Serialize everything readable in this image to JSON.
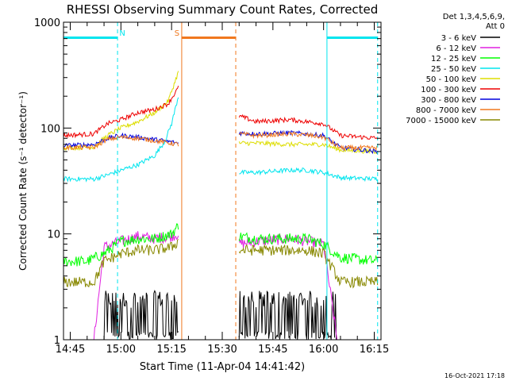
{
  "chart_data": {
    "type": "line",
    "title": "RHESSI Observing Summary Count Rates, Corrected",
    "xlabel": "Start Time (11-Apr-04 14:41:42)",
    "ylabel": "Corrected Count Rate (s⁻¹ detector⁻¹)",
    "yscale": "log",
    "ylim": [
      1,
      1000
    ],
    "y_ticks": [
      "1",
      "10",
      "100",
      "1000"
    ],
    "x_ticks": [
      "14:45",
      "15:00",
      "15:15",
      "15:30",
      "15:45",
      "16:00",
      "16:15"
    ],
    "xlim_min_from_1440": [
      3,
      97
    ],
    "legend_header": [
      "Det 1,3,4,5,6,9,",
      "Att 0"
    ],
    "legend_position": "right",
    "timestamp": "16-Oct-2021 17:18",
    "bars": [
      {
        "label": "N",
        "start": "14:42",
        "end": "14:59",
        "color": "#00e5ee"
      },
      {
        "label": "S",
        "start": "15:18",
        "end": "15:34",
        "color": "#f0781e"
      },
      {
        "label": "",
        "start": "16:01",
        "end": "16:16",
        "color": "#00e5ee"
      }
    ],
    "vlines": [
      {
        "time": "14:59",
        "color": "#00e5ee",
        "style": "dashed"
      },
      {
        "time": "15:18",
        "color": "#f0781e",
        "style": "solid"
      },
      {
        "time": "15:34",
        "color": "#f0781e",
        "style": "dashed"
      },
      {
        "time": "16:01",
        "color": "#00e5ee",
        "style": "solid"
      },
      {
        "time": "16:16",
        "color": "#00e5ee",
        "style": "dashed"
      }
    ],
    "series": [
      {
        "name": "3 - 6 keV",
        "color": "#000000",
        "seg1": [
          [
            "14:42",
            1.0
          ],
          [
            "14:55",
            1.0
          ],
          [
            "14:56",
            2.0
          ],
          [
            "15:00",
            2.2
          ],
          [
            "15:05",
            2.5
          ],
          [
            "15:10",
            2.2
          ],
          [
            "15:15",
            2.0
          ],
          [
            "15:17",
            1.5
          ]
        ],
        "seg2": [
          [
            "15:35",
            1.5
          ],
          [
            "15:40",
            2.0
          ],
          [
            "15:50",
            2.2
          ],
          [
            "15:55",
            2.1
          ],
          [
            "16:00",
            2.0
          ],
          [
            "16:04",
            1.0
          ],
          [
            "16:16",
            1.0
          ]
        ]
      },
      {
        "name": "6 - 12 keV",
        "color": "#e020e0",
        "seg1": [
          [
            "14:42",
            1.0
          ],
          [
            "14:52",
            1.0
          ],
          [
            "14:55",
            7.5
          ],
          [
            "15:00",
            8.5
          ],
          [
            "15:05",
            9.5
          ],
          [
            "15:10",
            9.0
          ],
          [
            "15:15",
            9.5
          ],
          [
            "15:17",
            10.0
          ]
        ],
        "seg2": [
          [
            "15:35",
            8.0
          ],
          [
            "15:40",
            8.5
          ],
          [
            "15:50",
            9.0
          ],
          [
            "15:55",
            8.5
          ],
          [
            "16:00",
            8.0
          ],
          [
            "16:04",
            1.0
          ],
          [
            "16:16",
            1.0
          ]
        ]
      },
      {
        "name": "12 - 25 keV",
        "color": "#00ff00",
        "seg1": [
          [
            "14:42",
            5.5
          ],
          [
            "14:50",
            5.5
          ],
          [
            "14:55",
            6.5
          ],
          [
            "15:00",
            8.5
          ],
          [
            "15:05",
            9.0
          ],
          [
            "15:10",
            9.0
          ],
          [
            "15:15",
            10.0
          ],
          [
            "15:17",
            12.0
          ]
        ],
        "seg2": [
          [
            "15:35",
            9.5
          ],
          [
            "15:40",
            9.0
          ],
          [
            "15:50",
            9.0
          ],
          [
            "15:55",
            9.0
          ],
          [
            "16:00",
            8.0
          ],
          [
            "16:05",
            6.0
          ],
          [
            "16:16",
            5.5
          ]
        ]
      },
      {
        "name": "25 - 50 keV",
        "color": "#00e5ee",
        "seg1": [
          [
            "14:42",
            33
          ],
          [
            "14:52",
            33
          ],
          [
            "14:56",
            36
          ],
          [
            "15:00",
            40
          ],
          [
            "15:05",
            45
          ],
          [
            "15:10",
            55
          ],
          [
            "15:13",
            75
          ],
          [
            "15:15",
            110
          ],
          [
            "15:17",
            200
          ]
        ],
        "seg2": [
          [
            "15:35",
            38
          ],
          [
            "15:40",
            38
          ],
          [
            "15:50",
            40
          ],
          [
            "15:55",
            40
          ],
          [
            "16:00",
            38
          ],
          [
            "16:05",
            34
          ],
          [
            "16:16",
            33
          ]
        ]
      },
      {
        "name": "50 - 100 keV",
        "color": "#dddd00",
        "seg1": [
          [
            "14:42",
            65
          ],
          [
            "14:52",
            66
          ],
          [
            "14:56",
            85
          ],
          [
            "15:00",
            100
          ],
          [
            "15:05",
            115
          ],
          [
            "15:10",
            140
          ],
          [
            "15:14",
            180
          ],
          [
            "15:17",
            340
          ]
        ],
        "seg2": [
          [
            "15:35",
            72
          ],
          [
            "15:40",
            72
          ],
          [
            "15:50",
            70
          ],
          [
            "15:55",
            70
          ],
          [
            "16:00",
            70
          ],
          [
            "16:05",
            62
          ],
          [
            "16:16",
            60
          ]
        ]
      },
      {
        "name": "100 - 300 keV",
        "color": "#ee0000",
        "seg1": [
          [
            "14:42",
            85
          ],
          [
            "14:52",
            88
          ],
          [
            "14:56",
            110
          ],
          [
            "15:00",
            120
          ],
          [
            "15:05",
            140
          ],
          [
            "15:10",
            150
          ],
          [
            "15:14",
            170
          ],
          [
            "15:17",
            240
          ]
        ],
        "seg2": [
          [
            "15:35",
            130
          ],
          [
            "15:40",
            115
          ],
          [
            "15:50",
            120
          ],
          [
            "15:55",
            115
          ],
          [
            "16:00",
            110
          ],
          [
            "16:05",
            85
          ],
          [
            "16:16",
            80
          ]
        ]
      },
      {
        "name": "300 - 800 keV",
        "color": "#0000dd",
        "seg1": [
          [
            "14:42",
            68
          ],
          [
            "14:52",
            70
          ],
          [
            "14:56",
            80
          ],
          [
            "15:00",
            85
          ],
          [
            "15:05",
            82
          ],
          [
            "15:10",
            78
          ],
          [
            "15:17",
            72
          ]
        ],
        "seg2": [
          [
            "15:35",
            90
          ],
          [
            "15:40",
            88
          ],
          [
            "15:50",
            90
          ],
          [
            "15:55",
            88
          ],
          [
            "16:00",
            85
          ],
          [
            "16:05",
            65
          ],
          [
            "16:16",
            60
          ]
        ]
      },
      {
        "name": "800 - 7000 keV",
        "color": "#f0781e",
        "seg1": [
          [
            "14:42",
            65
          ],
          [
            "14:52",
            66
          ],
          [
            "14:56",
            78
          ],
          [
            "15:00",
            82
          ],
          [
            "15:05",
            80
          ],
          [
            "15:10",
            76
          ],
          [
            "15:17",
            70
          ]
        ],
        "seg2": [
          [
            "15:35",
            88
          ],
          [
            "15:40",
            85
          ],
          [
            "15:50",
            88
          ],
          [
            "15:55",
            86
          ],
          [
            "16:00",
            82
          ],
          [
            "16:05",
            65
          ],
          [
            "16:16",
            65
          ]
        ]
      },
      {
        "name": "7000 - 15000 keV",
        "color": "#888800",
        "seg1": [
          [
            "14:42",
            3.5
          ],
          [
            "14:52",
            3.5
          ],
          [
            "14:55",
            5.5
          ],
          [
            "15:00",
            6.5
          ],
          [
            "15:05",
            7.0
          ],
          [
            "15:10",
            7.0
          ],
          [
            "15:15",
            7.5
          ],
          [
            "15:17",
            8.5
          ]
        ],
        "seg2": [
          [
            "15:35",
            7.0
          ],
          [
            "15:40",
            7.0
          ],
          [
            "15:50",
            7.0
          ],
          [
            "15:55",
            7.0
          ],
          [
            "16:00",
            6.5
          ],
          [
            "16:05",
            3.5
          ],
          [
            "16:16",
            3.5
          ]
        ]
      }
    ]
  }
}
